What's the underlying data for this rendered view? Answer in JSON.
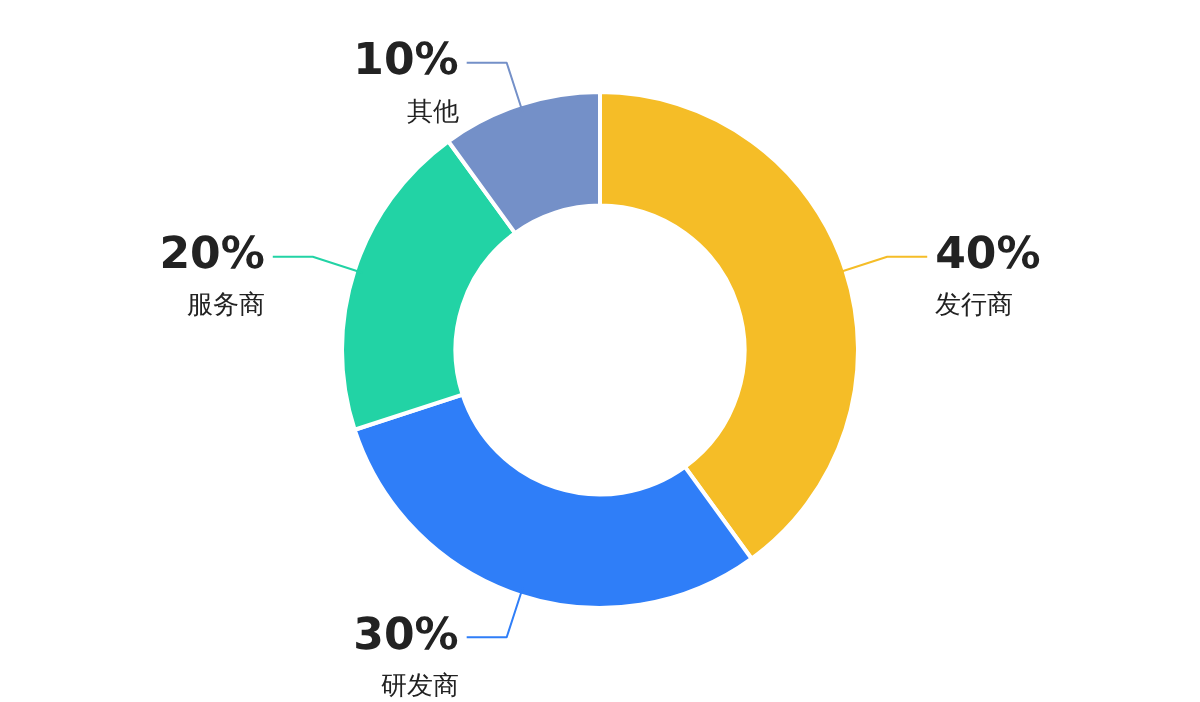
{
  "chart_data": {
    "type": "donut",
    "categories": [
      "发行商",
      "研发商",
      "服务商",
      "其他"
    ],
    "values": [
      40,
      30,
      20,
      10
    ],
    "colors": [
      "#f5bd27",
      "#2f7ef8",
      "#22d3a5",
      "#7490c8"
    ],
    "value_labels": [
      "40%",
      "30%",
      "20%",
      "10%"
    ],
    "legend": false
  }
}
